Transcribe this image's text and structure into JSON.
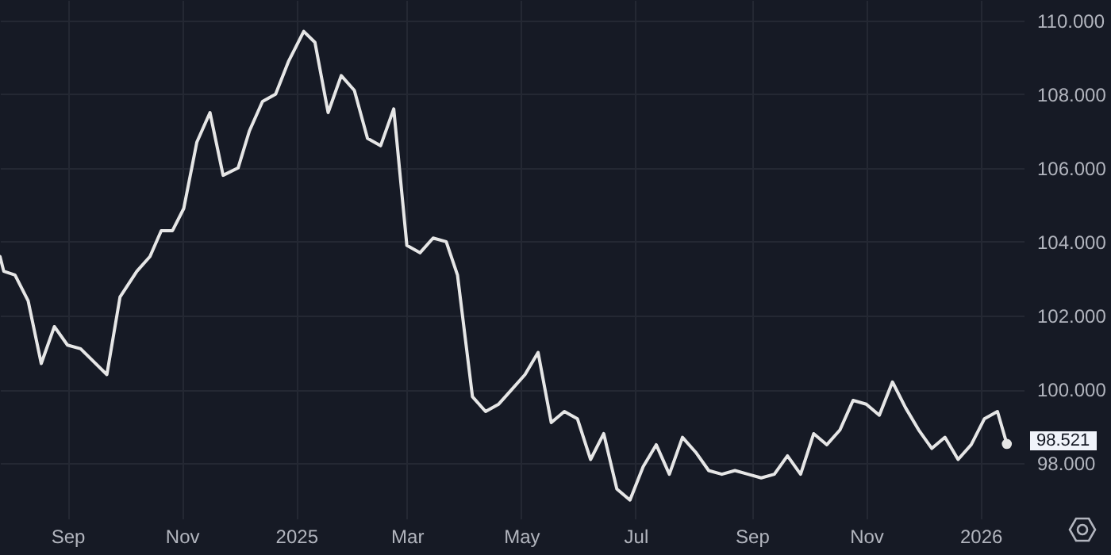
{
  "chart_data": {
    "type": "line",
    "x": [
      "2024-07-27",
      "2024-07-29",
      "2024-08-04",
      "2024-08-11",
      "2024-08-18",
      "2024-08-25",
      "2024-09-01",
      "2024-09-08",
      "2024-09-22",
      "2024-09-29",
      "2024-10-08",
      "2024-10-15",
      "2024-10-21",
      "2024-10-27",
      "2024-11-02",
      "2024-11-09",
      "2024-11-16",
      "2024-11-23",
      "2024-12-01",
      "2024-12-07",
      "2024-12-14",
      "2024-12-21",
      "2024-12-28",
      "2025-01-05",
      "2025-01-11",
      "2025-01-18",
      "2025-01-25",
      "2025-02-01",
      "2025-02-08",
      "2025-02-15",
      "2025-02-22",
      "2025-03-01",
      "2025-03-08",
      "2025-03-15",
      "2025-03-22",
      "2025-03-28",
      "2025-04-05",
      "2025-04-12",
      "2025-04-19",
      "2025-04-26",
      "2025-05-03",
      "2025-05-10",
      "2025-05-17",
      "2025-05-24",
      "2025-05-31",
      "2025-06-07",
      "2025-06-14",
      "2025-06-21",
      "2025-06-28",
      "2025-07-05",
      "2025-07-12",
      "2025-07-19",
      "2025-07-26",
      "2025-08-02",
      "2025-08-09",
      "2025-08-16",
      "2025-08-23",
      "2025-08-30",
      "2025-09-06",
      "2025-09-13",
      "2025-09-20",
      "2025-09-27",
      "2025-10-04",
      "2025-10-11",
      "2025-10-18",
      "2025-10-25",
      "2025-11-01",
      "2025-11-08",
      "2025-11-15",
      "2025-11-22",
      "2025-11-29",
      "2025-12-06",
      "2025-12-13",
      "2025-12-20",
      "2025-12-27",
      "2026-01-03",
      "2026-01-10",
      "2026-01-15"
    ],
    "series": [
      {
        "color": "#e6e6e6",
        "values": [
          103.6,
          103.2,
          103.1,
          102.4,
          100.7,
          101.7,
          101.2,
          101.1,
          100.4,
          102.5,
          103.2,
          103.6,
          104.3,
          104.3,
          104.9,
          106.7,
          107.5,
          105.8,
          106.0,
          107.0,
          107.8,
          108.0,
          108.9,
          109.7,
          109.4,
          107.5,
          108.5,
          108.1,
          106.8,
          106.6,
          107.6,
          103.9,
          103.7,
          104.1,
          104.0,
          103.1,
          99.8,
          99.4,
          99.6,
          100.0,
          100.4,
          101.0,
          99.1,
          99.4,
          99.2,
          98.1,
          98.8,
          97.3,
          97.0,
          97.9,
          98.5,
          97.7,
          98.7,
          98.3,
          97.8,
          97.7,
          97.8,
          97.7,
          97.6,
          97.7,
          98.2,
          97.7,
          98.8,
          98.5,
          98.9,
          99.7,
          99.6,
          99.3,
          100.2,
          99.5,
          98.9,
          98.4,
          98.7,
          98.1,
          98.5,
          99.2,
          99.4,
          98.521
        ]
      }
    ],
    "xlim": [
      "2024-07-27",
      "2026-01-24"
    ],
    "xticks": [
      {
        "value": "2024-09-01",
        "label": "Sep"
      },
      {
        "value": "2024-11-01",
        "label": "Nov"
      },
      {
        "value": "2025-01-01",
        "label": "2025"
      },
      {
        "value": "2025-03-01",
        "label": "Mar"
      },
      {
        "value": "2025-05-01",
        "label": "May"
      },
      {
        "value": "2025-07-01",
        "label": "Jul"
      },
      {
        "value": "2025-09-01",
        "label": "Sep"
      },
      {
        "value": "2025-11-01",
        "label": "Nov"
      },
      {
        "value": "2026-01-01",
        "label": "2026"
      }
    ],
    "ylim": [
      96.5,
      110.55
    ],
    "yticks": [
      {
        "value": 98,
        "label": "98.000"
      },
      {
        "value": 100,
        "label": "100.000"
      },
      {
        "value": 102,
        "label": "102.000"
      },
      {
        "value": 104,
        "label": "104.000"
      },
      {
        "value": 106,
        "label": "106.000"
      },
      {
        "value": 108,
        "label": "108.000"
      },
      {
        "value": 110,
        "label": "110.000"
      }
    ],
    "grid": true,
    "marker": "none",
    "line_style": "solid",
    "annotations": [
      {
        "text": "98.521",
        "x": "2026-01-15",
        "y": 98.521
      }
    ]
  }
}
